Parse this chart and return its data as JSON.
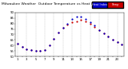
{
  "title": "Milwaukee Weather  Outdoor Temperature vs Heat Index (24 Hours)",
  "background_color": "#ffffff",
  "grid_color": "#aaaaaa",
  "hours": [
    1,
    2,
    3,
    4,
    5,
    6,
    7,
    8,
    9,
    10,
    11,
    12,
    13,
    14,
    15,
    16,
    17,
    18,
    19,
    20,
    21,
    22,
    23,
    24
  ],
  "temp_values": [
    62,
    59,
    57,
    56,
    55,
    55,
    56,
    60,
    66,
    72,
    76,
    79,
    81,
    82,
    83,
    82,
    80,
    77,
    74,
    71,
    68,
    65,
    63,
    61
  ],
  "heat_index_values": [
    62,
    59,
    57,
    56,
    55,
    55,
    56,
    60,
    66,
    72,
    76,
    80,
    84,
    86,
    86,
    84,
    81,
    78,
    74,
    71,
    68,
    65,
    63,
    61
  ],
  "temp_color": "#cc0000",
  "heat_color": "#0000cc",
  "legend_temp_label": "Temp",
  "legend_heat_label": "Heat Index",
  "ylim": [
    50,
    90
  ],
  "xlim": [
    0.5,
    24.5
  ],
  "title_fontsize": 3.2,
  "tick_fontsize": 2.8,
  "legend_fontsize": 3.0,
  "dot_size": 2.5,
  "fig_width": 1.6,
  "fig_height": 0.87,
  "dpi": 100
}
